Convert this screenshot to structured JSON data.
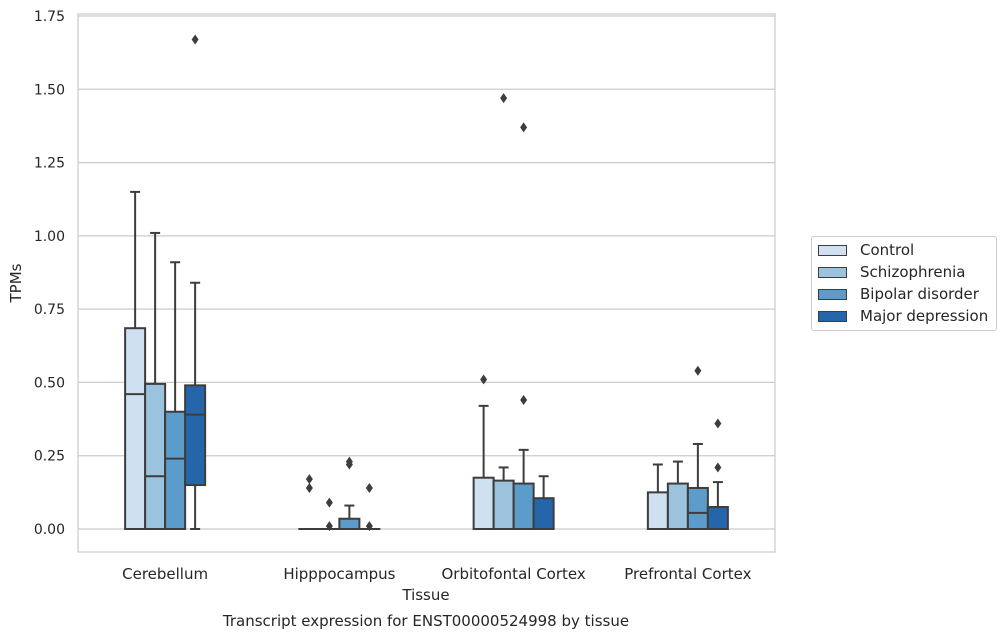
{
  "chart_data": {
    "type": "box",
    "ylabel": "TPMs",
    "xlabel": "Tissue",
    "caption": "Transcript expression for ENST00000524998 by tissue",
    "ylim": [
      -0.08,
      1.76
    ],
    "yticks": [
      "0.00",
      "0.25",
      "0.50",
      "0.75",
      "1.00",
      "1.25",
      "1.50",
      "1.75"
    ],
    "ytick_values": [
      0,
      0.25,
      0.5,
      0.75,
      1.0,
      1.25,
      1.5,
      1.75
    ],
    "grid": "horizontal",
    "legend_position": "right",
    "categories": [
      "Cerebellum",
      "Hipppocampus",
      "Orbitofontal Cortex",
      "Prefrontal Cortex"
    ],
    "series": [
      {
        "name": "Control",
        "color": "#cfe0f0",
        "boxes": [
          {
            "whislo": 0.0,
            "q1": 0.0,
            "med": 0.46,
            "q3": 0.685,
            "whishi": 1.15,
            "fliers": []
          },
          {
            "whislo": 0.0,
            "q1": 0.0,
            "med": 0.0,
            "q3": 0.0,
            "whishi": 0.0,
            "fliers": [
              0.14,
              0.17
            ]
          },
          {
            "whislo": 0.0,
            "q1": 0.0,
            "med": 0.0,
            "q3": 0.175,
            "whishi": 0.42,
            "fliers": [
              0.51
            ]
          },
          {
            "whislo": 0.0,
            "q1": 0.0,
            "med": 0.0,
            "q3": 0.125,
            "whishi": 0.22,
            "fliers": []
          }
        ]
      },
      {
        "name": "Schizophrenia",
        "color": "#9cc3de",
        "boxes": [
          {
            "whislo": 0.0,
            "q1": 0.0,
            "med": 0.18,
            "q3": 0.495,
            "whishi": 1.01,
            "fliers": []
          },
          {
            "whislo": 0.0,
            "q1": 0.0,
            "med": 0.0,
            "q3": 0.0,
            "whishi": 0.0,
            "fliers": [
              0.01,
              0.09
            ]
          },
          {
            "whislo": 0.0,
            "q1": 0.0,
            "med": 0.0,
            "q3": 0.165,
            "whishi": 0.21,
            "fliers": [
              1.47
            ]
          },
          {
            "whislo": 0.0,
            "q1": 0.0,
            "med": 0.0,
            "q3": 0.155,
            "whishi": 0.23,
            "fliers": []
          }
        ]
      },
      {
        "name": "Bipolar disorder",
        "color": "#5c9cca",
        "boxes": [
          {
            "whislo": 0.0,
            "q1": 0.0,
            "med": 0.24,
            "q3": 0.4,
            "whishi": 0.91,
            "fliers": []
          },
          {
            "whislo": 0.0,
            "q1": 0.0,
            "med": 0.0,
            "q3": 0.035,
            "whishi": 0.08,
            "fliers": [
              0.22,
              0.23
            ]
          },
          {
            "whislo": 0.0,
            "q1": 0.0,
            "med": 0.0,
            "q3": 0.155,
            "whishi": 0.27,
            "fliers": [
              0.44,
              1.37
            ]
          },
          {
            "whislo": 0.0,
            "q1": 0.0,
            "med": 0.055,
            "q3": 0.14,
            "whishi": 0.29,
            "fliers": [
              0.54
            ]
          }
        ]
      },
      {
        "name": "Major depression",
        "color": "#2466a9",
        "boxes": [
          {
            "whislo": 0.0,
            "q1": 0.15,
            "med": 0.39,
            "q3": 0.49,
            "whishi": 0.84,
            "fliers": [
              1.67
            ]
          },
          {
            "whislo": 0.0,
            "q1": 0.0,
            "med": 0.0,
            "q3": 0.0,
            "whishi": 0.0,
            "fliers": [
              0.01,
              0.14
            ]
          },
          {
            "whislo": 0.0,
            "q1": 0.0,
            "med": 0.0,
            "q3": 0.105,
            "whishi": 0.18,
            "fliers": []
          },
          {
            "whislo": 0.0,
            "q1": 0.0,
            "med": 0.0,
            "q3": 0.075,
            "whishi": 0.16,
            "fliers": [
              0.21,
              0.36
            ]
          }
        ]
      }
    ]
  }
}
